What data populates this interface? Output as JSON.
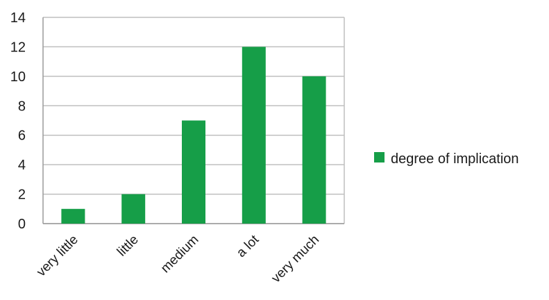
{
  "chart_data": {
    "type": "bar",
    "categories": [
      "very little",
      "little",
      "medium",
      "a lot",
      "very much"
    ],
    "series": [
      {
        "name": "degree of implication",
        "values": [
          1,
          2,
          7,
          12,
          10
        ]
      }
    ],
    "title": "",
    "xlabel": "",
    "ylabel": "",
    "ylim": [
      0,
      14
    ],
    "yticks": [
      0,
      2,
      4,
      6,
      8,
      10,
      12,
      14
    ],
    "grid": true,
    "legend_position": "right",
    "colors": {
      "bar": "#169e48",
      "grid": "#bfbfbf",
      "axis": "#9a9a9a"
    }
  }
}
